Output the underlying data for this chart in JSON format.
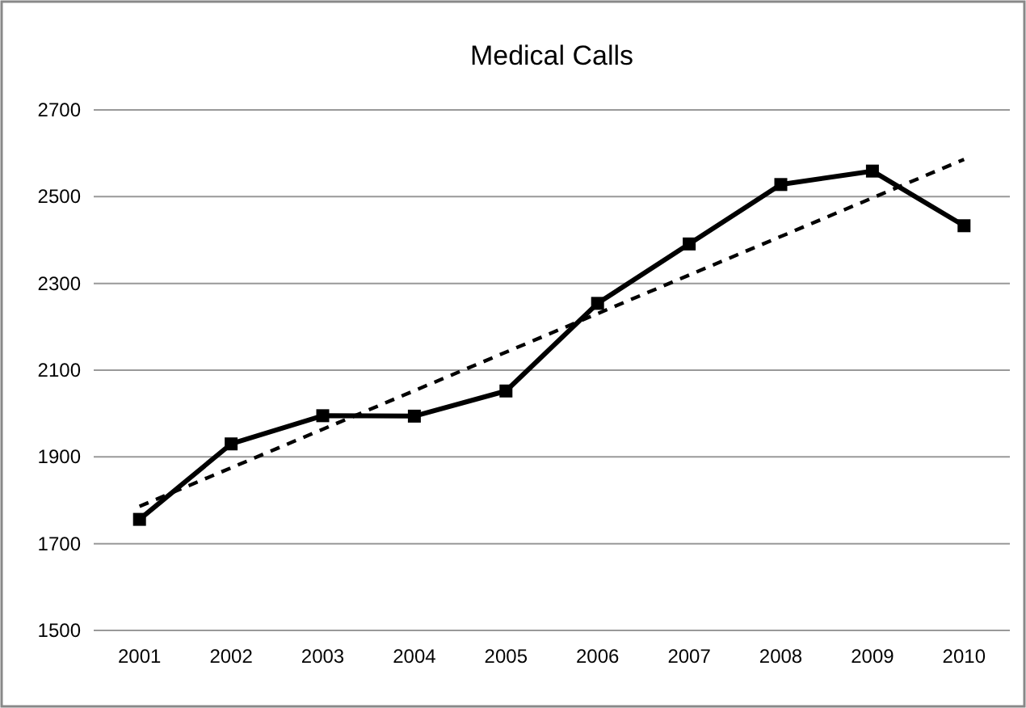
{
  "chart_data": {
    "type": "line",
    "title": "Medical Calls",
    "x": [
      2001,
      2002,
      2003,
      2004,
      2005,
      2006,
      2007,
      2008,
      2009,
      2010
    ],
    "series": [
      {
        "color": "#000000",
        "values": [
          1756,
          1930,
          1995,
          1994,
          2052,
          2254,
          2391,
          2528,
          2559,
          2433
        ],
        "marker": "square",
        "line_style": "solid"
      },
      {
        "type": "line",
        "color": "#000000",
        "x": [
          2001,
          2010
        ],
        "values": [
          1786,
          2586
        ],
        "marker": "none",
        "line_style": "dashed"
      }
    ],
    "xlim": [
      2000.5,
      2010.5
    ],
    "xticks": [
      2001,
      2002,
      2003,
      2004,
      2005,
      2006,
      2007,
      2008,
      2009,
      2010
    ],
    "ylim": [
      1500,
      2700
    ],
    "yticks": [
      1500,
      1700,
      1900,
      2100,
      2300,
      2500,
      2700
    ],
    "grid": "y"
  }
}
